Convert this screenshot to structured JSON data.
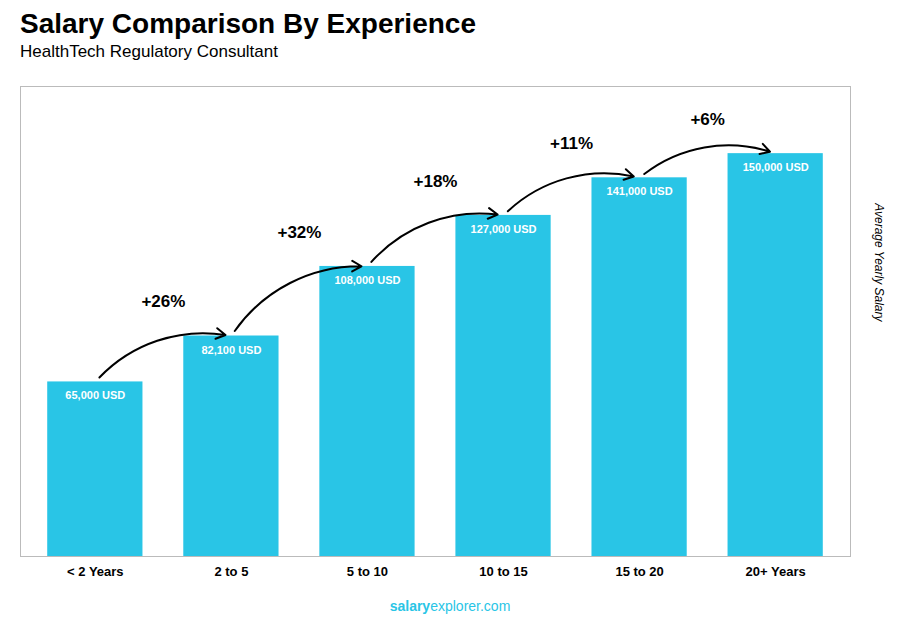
{
  "chart_data": {
    "type": "bar",
    "title": "Salary Comparison By Experience",
    "subtitle": "HealthTech Regulatory Consultant",
    "ylabel": "Average Yearly Salary",
    "footer": [
      "salary",
      "explorer.com"
    ],
    "categories": [
      "< 2 Years",
      "2 to 5",
      "5 to 10",
      "10 to 15",
      "15 to 20",
      "20+ Years"
    ],
    "values": [
      65000,
      82100,
      108000,
      127000,
      141000,
      150000
    ],
    "value_labels": [
      "65,000 USD",
      "82,100 USD",
      "108,000 USD",
      "127,000 USD",
      "141,000 USD",
      "150,000 USD"
    ],
    "data_labels": true,
    "annotations": [
      "+26%",
      "+32%",
      "+18%",
      "+11%",
      "+6%"
    ],
    "color": "#29C5E6",
    "ylim": [
      0,
      175000
    ],
    "grid": false,
    "tick_labels": "x"
  }
}
